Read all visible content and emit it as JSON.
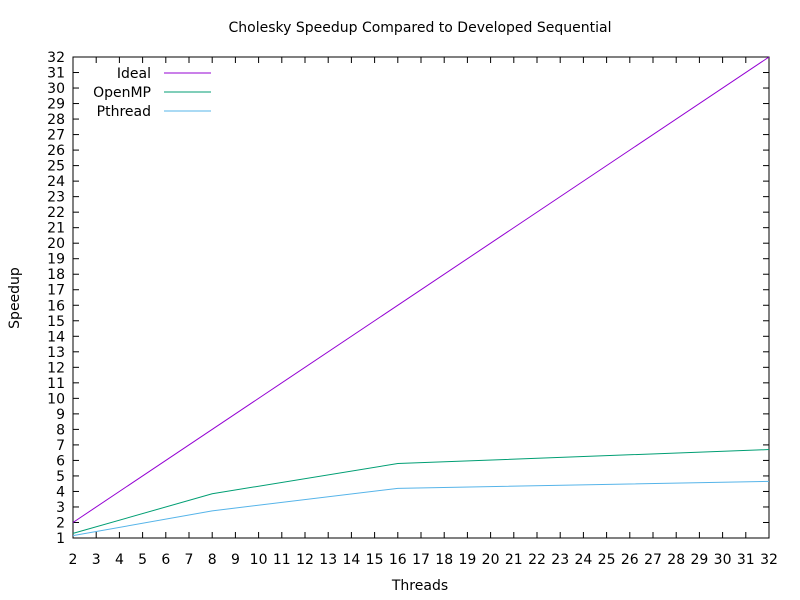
{
  "chart_data": {
    "type": "line",
    "title": "Cholesky Speedup Compared to Developed Sequential",
    "xlabel": "Threads",
    "ylabel": "Speedup",
    "xlim": [
      2,
      32
    ],
    "ylim": [
      1,
      32
    ],
    "xticks": [
      2,
      3,
      4,
      5,
      6,
      7,
      8,
      9,
      10,
      11,
      12,
      13,
      14,
      15,
      16,
      17,
      18,
      19,
      20,
      21,
      22,
      23,
      24,
      25,
      26,
      27,
      28,
      29,
      30,
      31,
      32
    ],
    "yticks": [
      1,
      2,
      3,
      4,
      5,
      6,
      7,
      8,
      9,
      10,
      11,
      12,
      13,
      14,
      15,
      16,
      17,
      18,
      19,
      20,
      21,
      22,
      23,
      24,
      25,
      26,
      27,
      28,
      29,
      30,
      31,
      32
    ],
    "legend_position": "top-left",
    "grid": false,
    "series": [
      {
        "name": "Ideal",
        "color": "#9400d3",
        "x": [
          2,
          32
        ],
        "y": [
          2,
          32
        ]
      },
      {
        "name": "OpenMP",
        "color": "#009e73",
        "x": [
          2,
          8,
          16,
          32
        ],
        "y": [
          1.3,
          3.85,
          5.8,
          6.7
        ]
      },
      {
        "name": "Pthread",
        "color": "#56b4e9",
        "x": [
          2,
          8,
          16,
          32
        ],
        "y": [
          1.15,
          2.75,
          4.2,
          4.65
        ]
      }
    ]
  }
}
